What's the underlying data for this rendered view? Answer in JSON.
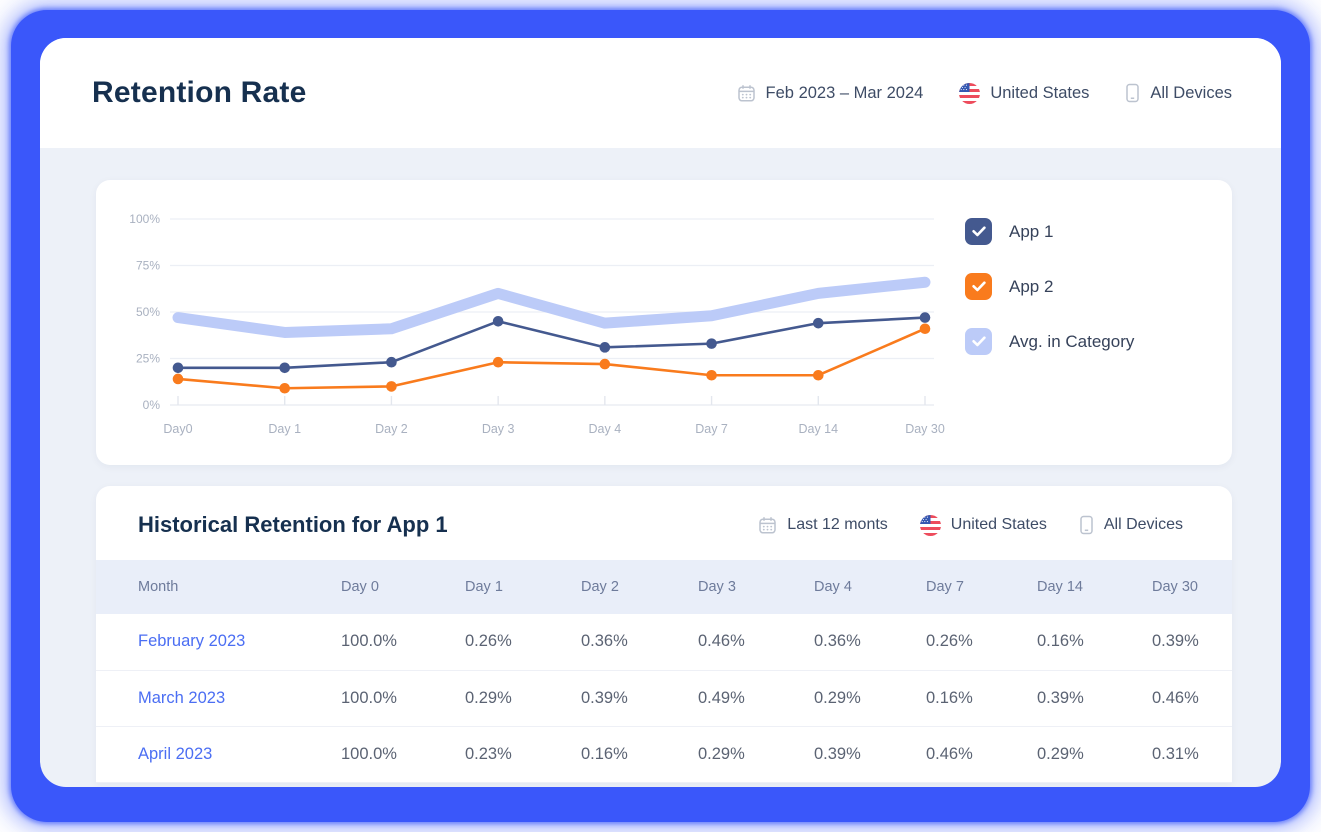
{
  "header": {
    "title": "Retention Rate",
    "filters": {
      "date_range": "Feb 2023 – Mar 2024",
      "country": "United States",
      "devices": "All Devices"
    }
  },
  "chart_data": {
    "type": "line",
    "title": "",
    "categories": [
      "Day0",
      "Day 1",
      "Day 2",
      "Day 3",
      "Day 4",
      "Day 7",
      "Day 14",
      "Day 30"
    ],
    "series": [
      {
        "name": "App 1",
        "color": "#44598f",
        "style": "line",
        "checked": true,
        "values": [
          20,
          20,
          23,
          45,
          31,
          33,
          44,
          47
        ]
      },
      {
        "name": "App 2",
        "color": "#f97b1d",
        "style": "line",
        "checked": true,
        "values": [
          14,
          9,
          10,
          23,
          22,
          16,
          16,
          41
        ]
      },
      {
        "name": "Avg. in Category",
        "color": "#bccbf8",
        "style": "band",
        "checked": true,
        "values": [
          47,
          39,
          41,
          60,
          44,
          48,
          60,
          66
        ]
      }
    ],
    "ylim": [
      0,
      100
    ],
    "yticks": [
      0,
      25,
      50,
      75,
      100
    ],
    "ytick_labels": [
      "0%",
      "25%",
      "50%",
      "75%",
      "100%"
    ],
    "grid": true,
    "legend_position": "right"
  },
  "table": {
    "title": "Historical Retention for App 1",
    "filters": {
      "date_range": "Last 12 monts",
      "country": "United States",
      "devices": "All Devices"
    },
    "columns": [
      "Month",
      "Day 0",
      "Day 1",
      "Day 2",
      "Day 3",
      "Day 4",
      "Day 7",
      "Day 14",
      "Day 30"
    ],
    "rows": [
      {
        "month": "February 2023",
        "values": [
          "100.0%",
          "0.26%",
          "0.36%",
          "0.46%",
          "0.36%",
          "0.26%",
          "0.16%",
          "0.39%"
        ]
      },
      {
        "month": "March 2023",
        "values": [
          "100.0%",
          "0.29%",
          "0.39%",
          "0.49%",
          "0.29%",
          "0.16%",
          "0.39%",
          "0.46%"
        ]
      },
      {
        "month": "April 2023",
        "values": [
          "100.0%",
          "0.23%",
          "0.16%",
          "0.29%",
          "0.39%",
          "0.46%",
          "0.29%",
          "0.31%"
        ]
      }
    ]
  },
  "colors": {
    "frame_blue": "#3a57fa",
    "page_background": "#edf1f8",
    "link_blue": "#4b6ef3",
    "title_navy": "#16304f"
  },
  "icons": {
    "date_filter": "calendar-icon",
    "country_filter": "us-flag-icon",
    "devices_filter": "mobile-device-icon",
    "legend_checkbox": "checkmark-icon"
  }
}
